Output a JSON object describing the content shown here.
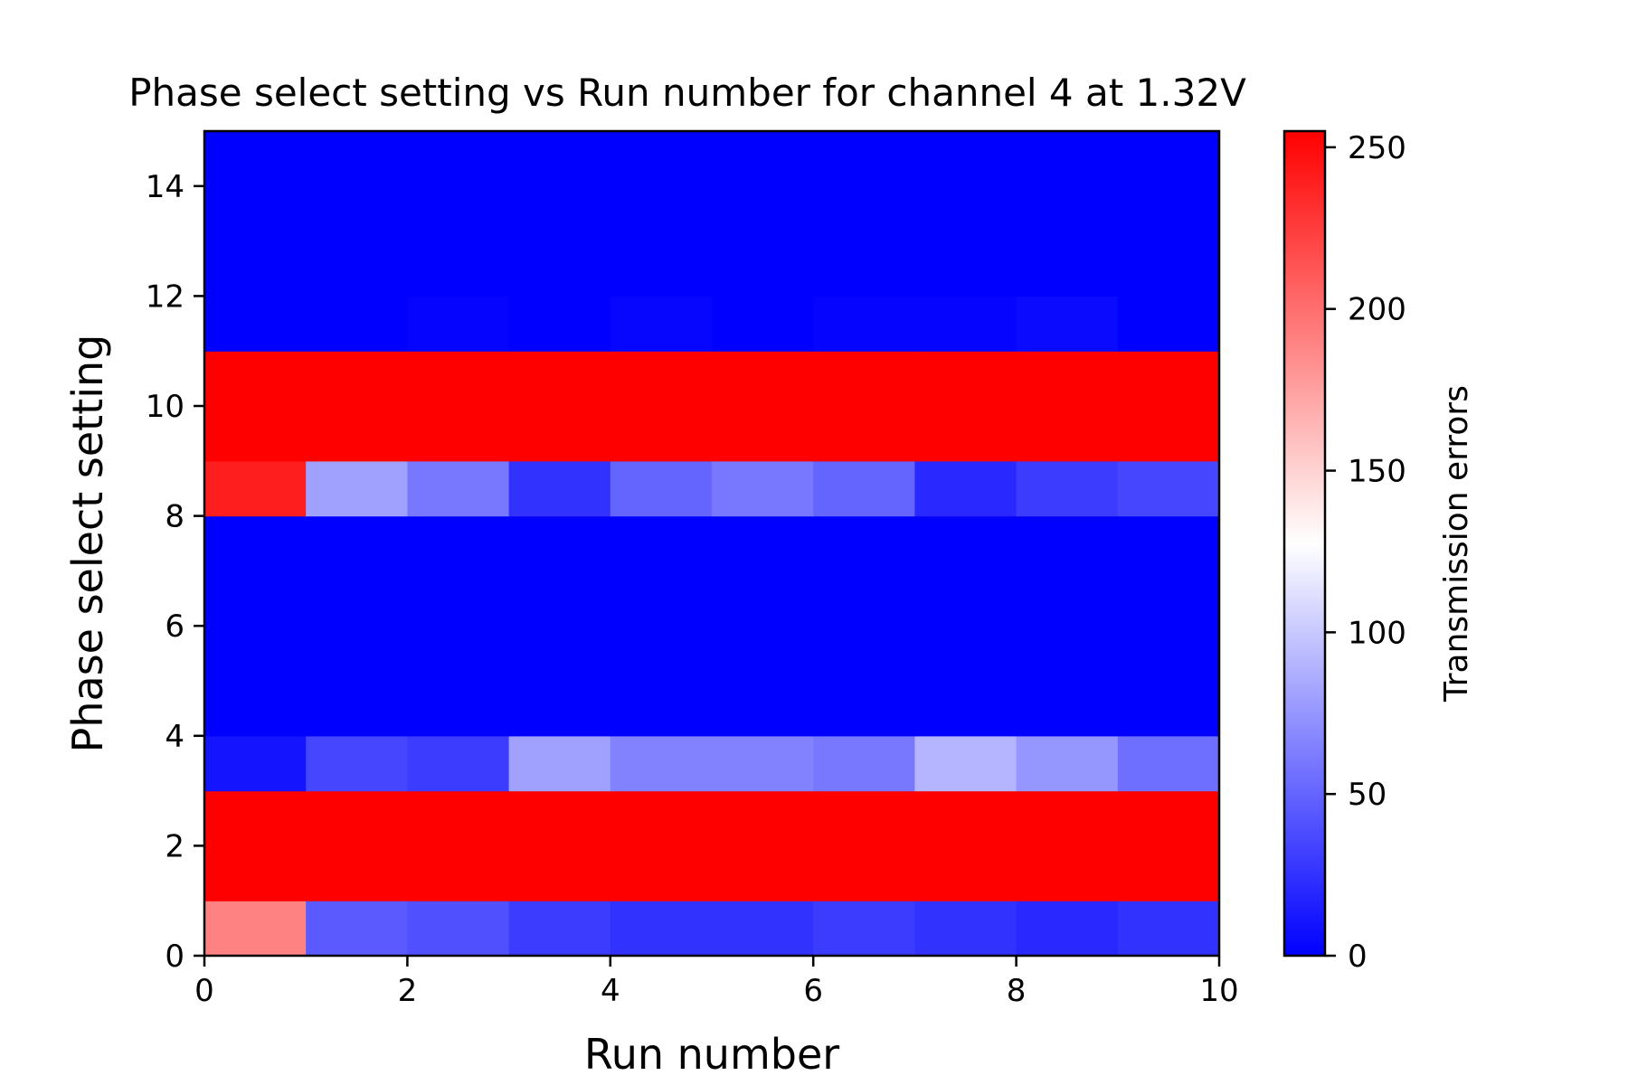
{
  "chart_data": {
    "type": "heatmap",
    "title": "Phase select setting vs Run number for channel 4 at 1.32V",
    "xlabel": "Run number",
    "ylabel": "Phase select setting",
    "colorbar_label": "Transmission errors",
    "xlim": [
      0,
      10
    ],
    "ylim": [
      0,
      15
    ],
    "x_ticks": [
      0,
      2,
      4,
      6,
      8,
      10
    ],
    "y_ticks": [
      0,
      2,
      4,
      6,
      8,
      10,
      12,
      14
    ],
    "colorbar_ticks": [
      0,
      50,
      100,
      150,
      200,
      250
    ],
    "colorbar_range": [
      0,
      255
    ],
    "colormap": "bwr",
    "colormap_colors": [
      "#0000ff",
      "#ffffff",
      "#ff0000"
    ],
    "grid": false,
    "x_bin_edges": [
      0,
      1,
      2,
      3,
      4,
      5,
      6,
      7,
      8,
      9,
      10
    ],
    "y_bin_edges": [
      0,
      1,
      3,
      4,
      8,
      9,
      11,
      12,
      15
    ],
    "values": [
      [
        190,
        45,
        40,
        30,
        25,
        25,
        30,
        25,
        20,
        25
      ],
      [
        255,
        255,
        255,
        255,
        255,
        255,
        255,
        255,
        255,
        255
      ],
      [
        10,
        35,
        30,
        80,
        65,
        65,
        60,
        90,
        75,
        55
      ],
      [
        0,
        0,
        0,
        0,
        0,
        0,
        0,
        0,
        0,
        0
      ],
      [
        240,
        80,
        60,
        25,
        50,
        60,
        50,
        20,
        30,
        35
      ],
      [
        255,
        255,
        255,
        255,
        255,
        255,
        255,
        255,
        255,
        255
      ],
      [
        0,
        0,
        2,
        0,
        3,
        0,
        2,
        2,
        5,
        0
      ],
      [
        0,
        0,
        0,
        0,
        0,
        0,
        0,
        0,
        0,
        0
      ]
    ]
  }
}
